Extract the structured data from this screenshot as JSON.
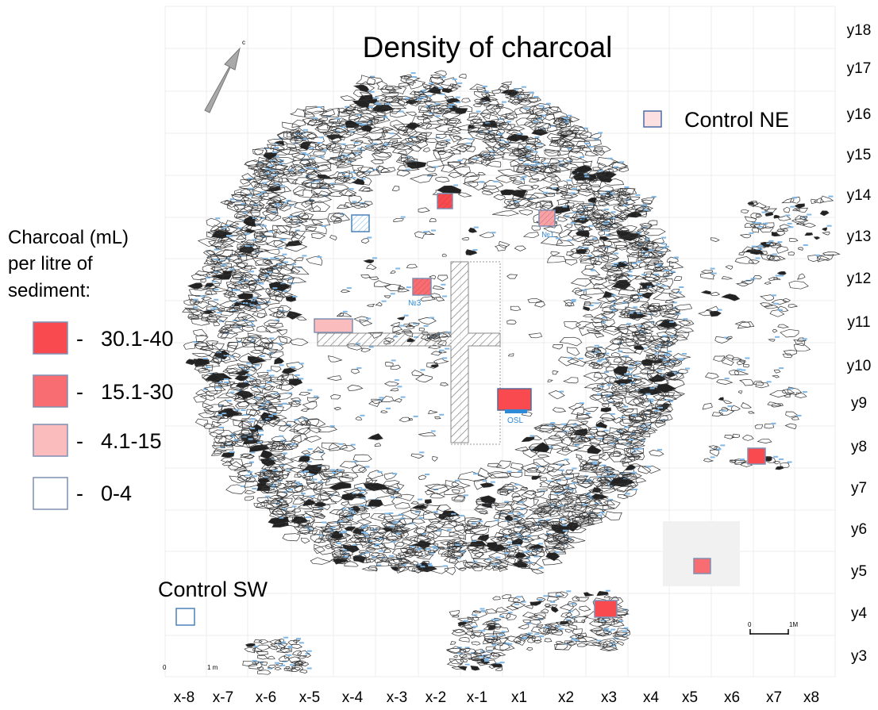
{
  "title": "Density of charcoal",
  "compass": {
    "label": "c",
    "icon": "north-arrow-icon"
  },
  "legend": {
    "heading_lines": [
      "Charcoal (mL)",
      "per litre of",
      "sediment:"
    ],
    "items": [
      {
        "dash": "-",
        "range": "30.1-40",
        "color": "#f94a50"
      },
      {
        "dash": "-",
        "range": "15.1-30",
        "color": "#f86d72"
      },
      {
        "dash": "-",
        "range": "4.1-15",
        "color": "#fbbcbe"
      },
      {
        "dash": "-",
        "range": "0-4",
        "color": "#ffffff"
      }
    ]
  },
  "controls": {
    "ne": {
      "label": "Control NE",
      "color": "#fde0e1"
    },
    "sw": {
      "label": "Control SW",
      "color": "#ffffff"
    }
  },
  "x_axis": [
    "x-8",
    "x-7",
    "x-6",
    "x-5",
    "x-4",
    "x-3",
    "x-2",
    "x-1",
    "x1",
    "x2",
    "x3",
    "x4",
    "x5",
    "x6",
    "x7",
    "x8"
  ],
  "y_axis": [
    "y18",
    "y17",
    "y16",
    "y15",
    "y14",
    "y13",
    "y12",
    "y11",
    "y10",
    "y9",
    "y8",
    "y7",
    "y6",
    "y5",
    "y4",
    "y3"
  ],
  "samples": [
    {
      "label": "",
      "category": "30.1-40",
      "color": "#f94a50"
    },
    {
      "label": "№1",
      "category": "15.1-30",
      "color": "#f8a2a6"
    },
    {
      "label": "",
      "category": "0-4",
      "color": "#ffffff"
    },
    {
      "label": "№3",
      "category": "15.1-30",
      "color": "#f86d72"
    },
    {
      "label": "",
      "category": "4.1-15",
      "color": "#fbbcbe"
    },
    {
      "label": "OSL",
      "category": "30.1-40",
      "color": "#f94a50"
    },
    {
      "label": "",
      "category": "30.1-40",
      "color": "#f94a50"
    },
    {
      "label": "",
      "category": "15.1-30",
      "color": "#f86d72"
    },
    {
      "label": "",
      "category": "30.1-40",
      "color": "#f94a50"
    }
  ],
  "scale_bars": [
    {
      "start": "0",
      "end": "1M"
    },
    {
      "start": "0",
      "end": "1 m"
    }
  ],
  "accent_color": "#2e8ad6"
}
